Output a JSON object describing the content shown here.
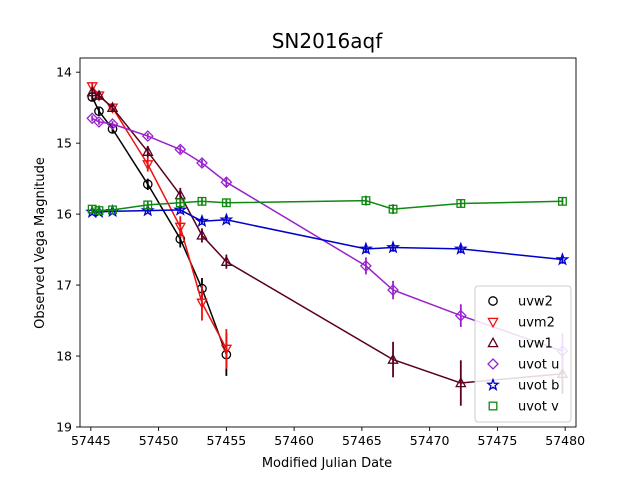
{
  "chart_data": {
    "type": "scatter",
    "title": "SN2016aqf",
    "xlabel": "Modified Julian Date",
    "ylabel": "Observed Vega Magnitude",
    "xlim": [
      57444.2,
      57480.8
    ],
    "ylim": [
      19.0,
      13.8
    ],
    "y_inverted": true,
    "xticks": [
      57445,
      57450,
      57455,
      57460,
      57465,
      57470,
      57475,
      57480
    ],
    "yticks": [
      14,
      15,
      16,
      17,
      18,
      19
    ],
    "grid": false,
    "legend_position": "lower-right",
    "series": [
      {
        "name": "uvw2",
        "color": "#000000",
        "marker": "circle",
        "points": [
          {
            "x": 57445.1,
            "y": 14.35,
            "err": 0.05
          },
          {
            "x": 57445.6,
            "y": 14.55,
            "err": 0.05
          },
          {
            "x": 57446.6,
            "y": 14.8,
            "err": 0.05
          },
          {
            "x": 57449.2,
            "y": 15.58,
            "err": 0.08
          },
          {
            "x": 57451.6,
            "y": 16.35,
            "err": 0.12
          },
          {
            "x": 57453.2,
            "y": 17.05,
            "err": 0.15
          },
          {
            "x": 57455.0,
            "y": 17.98,
            "err": 0.3
          }
        ]
      },
      {
        "name": "uvm2",
        "color": "#ee1111",
        "marker": "triangle-down",
        "points": [
          {
            "x": 57445.1,
            "y": 14.2,
            "err": 0.05
          },
          {
            "x": 57445.6,
            "y": 14.33,
            "err": 0.05
          },
          {
            "x": 57446.6,
            "y": 14.5,
            "err": 0.05
          },
          {
            "x": 57449.2,
            "y": 15.3,
            "err": 0.1
          },
          {
            "x": 57451.6,
            "y": 16.18,
            "err": 0.15
          },
          {
            "x": 57453.2,
            "y": 17.25,
            "err": 0.25
          },
          {
            "x": 57455.0,
            "y": 17.9,
            "err": 0.28
          }
        ]
      },
      {
        "name": "uvw1",
        "color": "#5a0020",
        "marker": "triangle-up",
        "points": [
          {
            "x": 57445.1,
            "y": 14.28,
            "err": 0.05
          },
          {
            "x": 57445.6,
            "y": 14.33,
            "err": 0.05
          },
          {
            "x": 57446.6,
            "y": 14.5,
            "err": 0.05
          },
          {
            "x": 57449.2,
            "y": 15.12,
            "err": 0.08
          },
          {
            "x": 57451.6,
            "y": 15.73,
            "err": 0.1
          },
          {
            "x": 57453.2,
            "y": 16.3,
            "err": 0.1
          },
          {
            "x": 57455.0,
            "y": 16.67,
            "err": 0.1
          },
          {
            "x": 57467.3,
            "y": 18.05,
            "err": 0.25
          },
          {
            "x": 57472.3,
            "y": 18.38,
            "err": 0.32
          },
          {
            "x": 57479.8,
            "y": 18.25,
            "err": 0.28
          }
        ]
      },
      {
        "name": "uvot u",
        "color": "#9922cc",
        "marker": "diamond",
        "points": [
          {
            "x": 57445.1,
            "y": 14.65,
            "err": 0.04
          },
          {
            "x": 57445.6,
            "y": 14.7,
            "err": 0.04
          },
          {
            "x": 57446.6,
            "y": 14.73,
            "err": 0.04
          },
          {
            "x": 57449.2,
            "y": 14.9,
            "err": 0.04
          },
          {
            "x": 57451.6,
            "y": 15.09,
            "err": 0.05
          },
          {
            "x": 57453.2,
            "y": 15.28,
            "err": 0.05
          },
          {
            "x": 57455.0,
            "y": 15.55,
            "err": 0.06
          },
          {
            "x": 57465.3,
            "y": 16.73,
            "err": 0.12
          },
          {
            "x": 57467.3,
            "y": 17.07,
            "err": 0.13
          },
          {
            "x": 57472.3,
            "y": 17.43,
            "err": 0.16
          },
          {
            "x": 57479.8,
            "y": 17.93,
            "err": 0.25
          }
        ]
      },
      {
        "name": "uvot b",
        "color": "#0000cc",
        "marker": "star",
        "points": [
          {
            "x": 57445.1,
            "y": 15.97,
            "err": 0.04
          },
          {
            "x": 57445.6,
            "y": 15.97,
            "err": 0.04
          },
          {
            "x": 57446.6,
            "y": 15.96,
            "err": 0.04
          },
          {
            "x": 57449.2,
            "y": 15.95,
            "err": 0.04
          },
          {
            "x": 57451.6,
            "y": 15.94,
            "err": 0.05
          },
          {
            "x": 57453.2,
            "y": 16.1,
            "err": 0.05
          },
          {
            "x": 57455.0,
            "y": 16.08,
            "err": 0.05
          },
          {
            "x": 57465.3,
            "y": 16.49,
            "err": 0.06
          },
          {
            "x": 57467.3,
            "y": 16.47,
            "err": 0.06
          },
          {
            "x": 57472.3,
            "y": 16.49,
            "err": 0.06
          },
          {
            "x": 57479.8,
            "y": 16.64,
            "err": 0.06
          }
        ]
      },
      {
        "name": "uvot v",
        "color": "#118811",
        "marker": "square",
        "points": [
          {
            "x": 57445.1,
            "y": 15.93,
            "err": 0.05
          },
          {
            "x": 57445.6,
            "y": 15.95,
            "err": 0.05
          },
          {
            "x": 57446.6,
            "y": 15.94,
            "err": 0.05
          },
          {
            "x": 57449.2,
            "y": 15.87,
            "err": 0.05
          },
          {
            "x": 57451.6,
            "y": 15.84,
            "err": 0.05
          },
          {
            "x": 57453.2,
            "y": 15.82,
            "err": 0.05
          },
          {
            "x": 57455.0,
            "y": 15.84,
            "err": 0.05
          },
          {
            "x": 57465.3,
            "y": 15.81,
            "err": 0.07
          },
          {
            "x": 57467.3,
            "y": 15.93,
            "err": 0.07
          },
          {
            "x": 57472.3,
            "y": 15.85,
            "err": 0.06
          },
          {
            "x": 57479.8,
            "y": 15.82,
            "err": 0.05
          }
        ]
      }
    ]
  }
}
